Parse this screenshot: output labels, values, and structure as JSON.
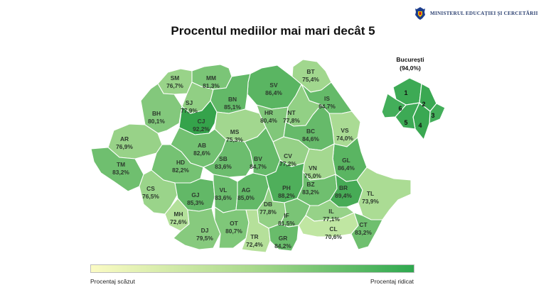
{
  "header": {
    "ministry": "MINISTERUL EDUCAȚIEI ȘI CERCETĂRII",
    "crest_icon": "romanian-coat-of-arms-icon"
  },
  "title": "Procentul mediilor mai mari decât 5",
  "legend": {
    "low": "Procentaj scăzut",
    "high": "Procentaj ridicat",
    "color_low": "#fbfbc4",
    "color_high": "#2fa84f"
  },
  "bucharest": {
    "name": "București",
    "value": "(94,0%)",
    "sectors": [
      "1",
      "2",
      "3",
      "4",
      "5",
      "6"
    ]
  },
  "counties": [
    {
      "code": "SM",
      "value": "76,7%",
      "pct": 76.7
    },
    {
      "code": "MM",
      "value": "81,3%",
      "pct": 81.3
    },
    {
      "code": "BT",
      "value": "75,4%",
      "pct": 75.4
    },
    {
      "code": "SV",
      "value": "86,4%",
      "pct": 86.4
    },
    {
      "code": "SJ",
      "value": "77,9%",
      "pct": 77.9
    },
    {
      "code": "BN",
      "value": "85,1%",
      "pct": 85.1
    },
    {
      "code": "IS",
      "value": "84,7%",
      "pct": 84.7
    },
    {
      "code": "BH",
      "value": "80,1%",
      "pct": 80.1
    },
    {
      "code": "CJ",
      "value": "92,2%",
      "pct": 92.2
    },
    {
      "code": "NT",
      "value": "77,8%",
      "pct": 77.8
    },
    {
      "code": "MS",
      "value": "75,3%",
      "pct": 75.3
    },
    {
      "code": "HR",
      "value": "80,4%",
      "pct": 80.4
    },
    {
      "code": "VS",
      "value": "74,0%",
      "pct": 74.0
    },
    {
      "code": "BC",
      "value": "84,6%",
      "pct": 84.6
    },
    {
      "code": "AR",
      "value": "76,9%",
      "pct": 76.9
    },
    {
      "code": "AB",
      "value": "82,6%",
      "pct": 82.6
    },
    {
      "code": "CV",
      "value": "77,2%",
      "pct": 77.2
    },
    {
      "code": "GL",
      "value": "86,4%",
      "pct": 86.4
    },
    {
      "code": "TM",
      "value": "83,2%",
      "pct": 83.2
    },
    {
      "code": "HD",
      "value": "82,2%",
      "pct": 82.2
    },
    {
      "code": "SB",
      "value": "83,6%",
      "pct": 83.6
    },
    {
      "code": "BV",
      "value": "84,7%",
      "pct": 84.7
    },
    {
      "code": "VN",
      "value": "75,0%",
      "pct": 75.0
    },
    {
      "code": "CS",
      "value": "76,5%",
      "pct": 76.5
    },
    {
      "code": "GJ",
      "value": "85,3%",
      "pct": 85.3
    },
    {
      "code": "VL",
      "value": "83,6%",
      "pct": 83.6
    },
    {
      "code": "AG",
      "value": "85,0%",
      "pct": 85.0
    },
    {
      "code": "PH",
      "value": "88,2%",
      "pct": 88.2
    },
    {
      "code": "BZ",
      "value": "83,2%",
      "pct": 83.2
    },
    {
      "code": "BR",
      "value": "89,4%",
      "pct": 89.4
    },
    {
      "code": "TL",
      "value": "73,9%",
      "pct": 73.9
    },
    {
      "code": "DB",
      "value": "77,8%",
      "pct": 77.8
    },
    {
      "code": "MH",
      "value": "72,6%",
      "pct": 72.6
    },
    {
      "code": "DJ",
      "value": "79,5%",
      "pct": 79.5
    },
    {
      "code": "OT",
      "value": "80,7%",
      "pct": 80.7
    },
    {
      "code": "TR",
      "value": "72,4%",
      "pct": 72.4
    },
    {
      "code": "IF",
      "value": "81,5%",
      "pct": 81.5
    },
    {
      "code": "GR",
      "value": "84,2%",
      "pct": 84.2
    },
    {
      "code": "IL",
      "value": "77,1%",
      "pct": 77.1
    },
    {
      "code": "CL",
      "value": "70,6%",
      "pct": 70.6
    },
    {
      "code": "CT",
      "value": "83,2%",
      "pct": 83.2
    }
  ]
}
